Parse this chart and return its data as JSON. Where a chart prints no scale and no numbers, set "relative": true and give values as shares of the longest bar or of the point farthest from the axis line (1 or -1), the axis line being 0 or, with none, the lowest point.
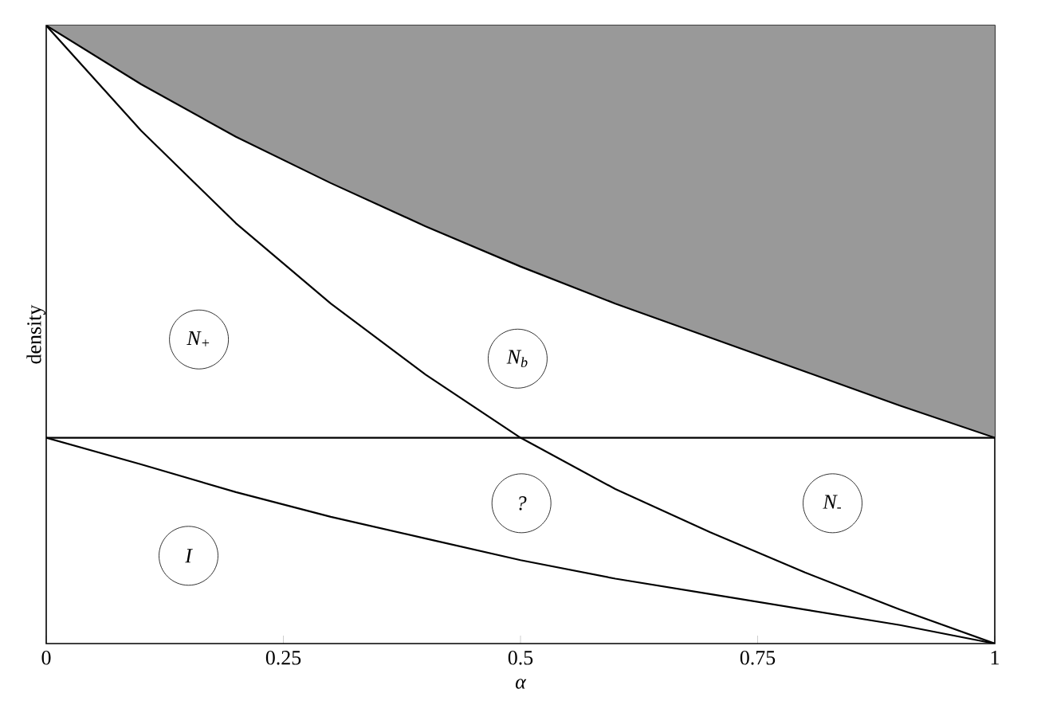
{
  "chart_data": {
    "type": "line",
    "xlabel": "α",
    "ylabel": "density",
    "relative": true,
    "x": [
      0,
      0.1,
      0.2,
      0.3,
      0.4,
      0.5,
      0.6,
      0.7,
      0.8,
      0.9,
      1
    ],
    "xlim": [
      0,
      1
    ],
    "xticks": [
      0,
      0.25,
      0.5,
      0.75,
      1
    ],
    "series": [
      {
        "color": "#000000",
        "values": [
          1,
          0.905,
          0.82,
          0.745,
          0.675,
          0.61,
          0.55,
          0.495,
          0.44,
          0.385,
          0.333
        ],
        "lower": [
          1,
          0.905,
          0.82,
          0.745,
          0.675,
          0.61,
          0.55,
          0.495,
          0.44,
          0.385,
          0.333
        ],
        "upper": [
          1,
          1,
          1,
          1,
          1,
          1,
          1,
          1,
          1,
          1,
          1
        ]
      },
      {
        "color": "#000000",
        "values": [
          1,
          0.83,
          0.68,
          0.55,
          0.435,
          0.333,
          0.25,
          0.18,
          0.115,
          0.055,
          0
        ]
      },
      {
        "color": "#000000",
        "values": [
          0.333,
          0.29,
          0.245,
          0.205,
          0.17,
          0.135,
          0.105,
          0.08,
          0.055,
          0.03,
          0
        ]
      }
    ],
    "ref_lines": [
      {
        "axis": "y",
        "value": 0.333,
        "color": "#000000"
      }
    ],
    "annotations": [
      {
        "text": "N$_{+}$",
        "x": 0.161,
        "y": 0.492
      },
      {
        "text": "N$_{b}$",
        "x": 0.497,
        "y": 0.461
      },
      {
        "text": "?",
        "x": 0.501,
        "y": 0.227
      },
      {
        "text": "N$_{-}$",
        "x": 0.829,
        "y": 0.227
      },
      {
        "text": "I",
        "x": 0.15,
        "y": 0.142
      }
    ]
  }
}
